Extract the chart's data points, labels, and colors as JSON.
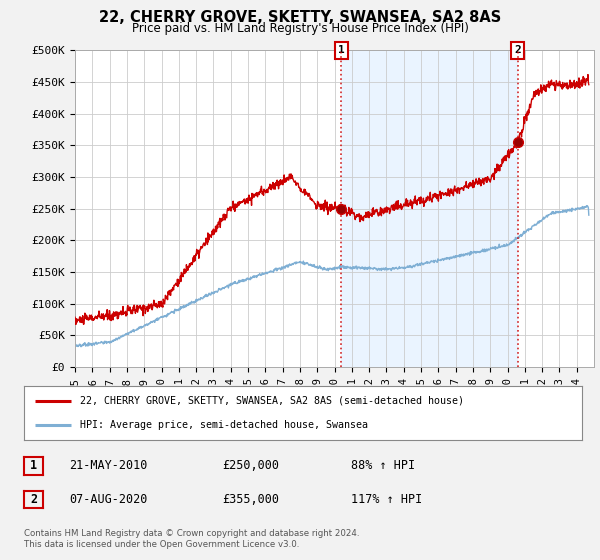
{
  "title": "22, CHERRY GROVE, SKETTY, SWANSEA, SA2 8AS",
  "subtitle": "Price paid vs. HM Land Registry's House Price Index (HPI)",
  "ylim": [
    0,
    500000
  ],
  "yticks": [
    0,
    50000,
    100000,
    150000,
    200000,
    250000,
    300000,
    350000,
    400000,
    450000,
    500000
  ],
  "ytick_labels": [
    "£0",
    "£50K",
    "£100K",
    "£150K",
    "£200K",
    "£250K",
    "£300K",
    "£350K",
    "£400K",
    "£450K",
    "£500K"
  ],
  "background_color": "#f2f2f2",
  "plot_bg_color": "#ffffff",
  "red_color": "#cc0000",
  "blue_color": "#7fafd4",
  "shade_color": "#ddeeff",
  "dashed_color": "#cc0000",
  "marker1_x": 2010.38,
  "marker1_y": 250000,
  "marker2_x": 2020.59,
  "marker2_y": 355000,
  "legend_line1": "22, CHERRY GROVE, SKETTY, SWANSEA, SA2 8AS (semi-detached house)",
  "legend_line2": "HPI: Average price, semi-detached house, Swansea",
  "annotation1_label": "1",
  "annotation1_date": "21-MAY-2010",
  "annotation1_price": "£250,000",
  "annotation1_hpi": "88% ↑ HPI",
  "annotation2_label": "2",
  "annotation2_date": "07-AUG-2020",
  "annotation2_price": "£355,000",
  "annotation2_hpi": "117% ↑ HPI",
  "footer": "Contains HM Land Registry data © Crown copyright and database right 2024.\nThis data is licensed under the Open Government Licence v3.0.",
  "xlim_start": 1995,
  "xlim_end": 2025
}
